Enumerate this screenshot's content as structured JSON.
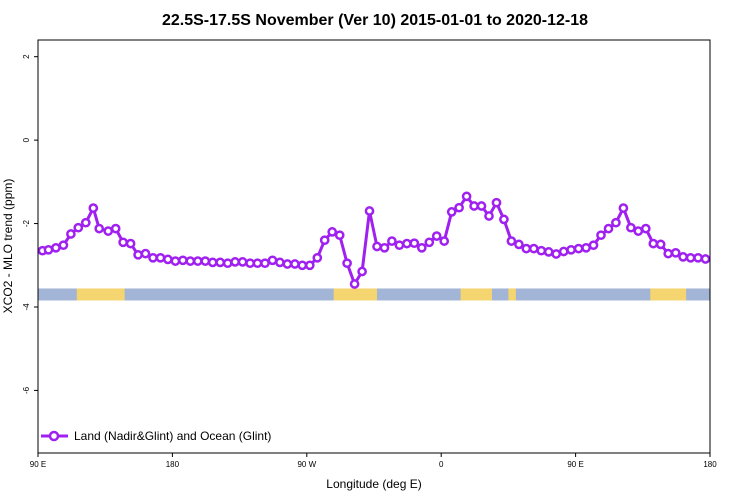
{
  "chart_data": {
    "type": "line",
    "title": "22.5S-17.5S November (Ver 10)   2015-01-01 to 2020-12-18",
    "xlabel": "Longitude (deg E)",
    "ylabel": "XCO2 - MLO trend (ppm)",
    "xlim": [
      90,
      540
    ],
    "ylim": [
      -7.5,
      2.4
    ],
    "x_ticks": [
      {
        "value": 90,
        "label": "90 E"
      },
      {
        "value": 180,
        "label": "180"
      },
      {
        "value": 270,
        "label": "90 W"
      },
      {
        "value": 360,
        "label": "0"
      },
      {
        "value": 450,
        "label": "90 E"
      },
      {
        "value": 540,
        "label": "180"
      }
    ],
    "y_ticks": [
      {
        "value": 2,
        "label": "2"
      },
      {
        "value": 0,
        "label": "0"
      },
      {
        "value": -2,
        "label": "-2"
      },
      {
        "value": -4,
        "label": "-4"
      },
      {
        "value": -6,
        "label": "-6"
      }
    ],
    "series": [
      {
        "name": "Land (Nadir&Glint) and Ocean (Glint)",
        "color": "#a020f0",
        "x": [
          93,
          97,
          102,
          107,
          112,
          117,
          122,
          127,
          131,
          137,
          142,
          147,
          152,
          157,
          162,
          167,
          172,
          177,
          182,
          187,
          192,
          197,
          202,
          207,
          212,
          217,
          222,
          227,
          232,
          237,
          242,
          247,
          252,
          257,
          262,
          267,
          272,
          277,
          282,
          287,
          292,
          297,
          302,
          307,
          312,
          317,
          322,
          327,
          332,
          337,
          342,
          347,
          352,
          357,
          362,
          367,
          372,
          377,
          382,
          387,
          392,
          397,
          402,
          407,
          412,
          417,
          422,
          427,
          432,
          437,
          442,
          447,
          452,
          457,
          462,
          467,
          472,
          477,
          482,
          487,
          492,
          497,
          502,
          507,
          512,
          517,
          522,
          527,
          532,
          537
        ],
        "y": [
          -2.65,
          -2.63,
          -2.58,
          -2.52,
          -2.25,
          -2.1,
          -1.98,
          -1.63,
          -2.12,
          -2.18,
          -2.12,
          -2.45,
          -2.48,
          -2.75,
          -2.72,
          -2.82,
          -2.82,
          -2.86,
          -2.9,
          -2.88,
          -2.9,
          -2.9,
          -2.9,
          -2.93,
          -2.93,
          -2.95,
          -2.92,
          -2.92,
          -2.95,
          -2.95,
          -2.95,
          -2.88,
          -2.93,
          -2.97,
          -2.97,
          -3.0,
          -3.0,
          -2.82,
          -2.4,
          -2.2,
          -2.28,
          -2.95,
          -3.45,
          -3.15,
          -1.7,
          -2.55,
          -2.58,
          -2.42,
          -2.52,
          -2.48,
          -2.47,
          -2.58,
          -2.45,
          -2.3,
          -2.42,
          -1.72,
          -1.62,
          -1.35,
          -1.58,
          -1.58,
          -1.82,
          -1.5,
          -1.9,
          -2.42,
          -2.5,
          -2.6,
          -2.6,
          -2.65,
          -2.68,
          -2.73,
          -2.67,
          -2.63,
          -2.6,
          -2.58,
          -2.52,
          -2.28,
          -2.12,
          -1.98,
          -1.63,
          -2.1,
          -2.18,
          -2.12,
          -2.48,
          -2.5,
          -2.72,
          -2.7,
          -2.8,
          -2.82,
          -2.82,
          -2.85
        ]
      }
    ],
    "surface_strip": {
      "y": -3.7,
      "ocean_color": "#a3b5d6",
      "land_color": "#f5d570",
      "land_ranges": [
        [
          116,
          148
        ],
        [
          288,
          317
        ],
        [
          373,
          394
        ],
        [
          405,
          410
        ],
        [
          500,
          524
        ]
      ]
    },
    "grid": false,
    "legend": "bottom-left"
  }
}
